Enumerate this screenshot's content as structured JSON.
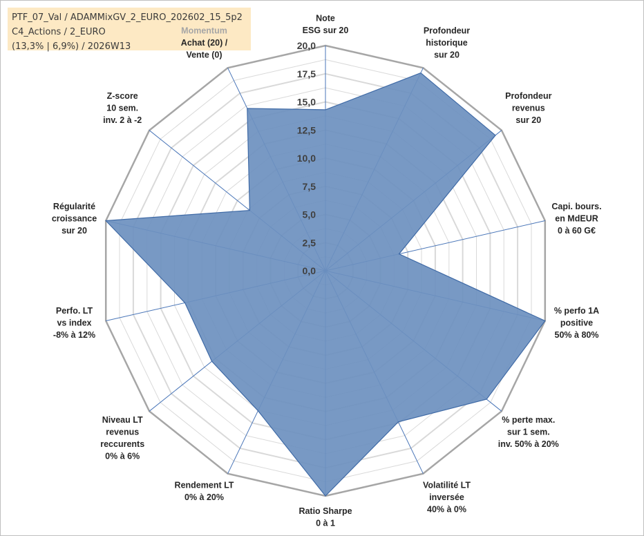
{
  "info": {
    "line1": "PTF_07_Val / ADAMMixGV_2_EURO_202602_15_5p2",
    "line2": "C4_Actions / 2_EURO",
    "line3": "(13,3% | 6,9%) / 2026W13"
  },
  "chart_data": {
    "type": "radar",
    "title": "",
    "rlim": [
      0,
      20
    ],
    "ticks": [
      "0,0",
      "2,5",
      "5,0",
      "7,5",
      "10,0",
      "12,5",
      "15,0",
      "17,5",
      "20,0"
    ],
    "grid": true,
    "series": [
      {
        "name": "PTF_07_Val",
        "color": "#5b7fb0",
        "values": [
          14.3,
          19.5,
          19.3,
          6.7,
          20.0,
          18.3,
          14.9,
          20.0,
          13.8,
          12.9,
          12.8,
          20.0,
          8.6,
          16.0
        ]
      }
    ],
    "axes": [
      {
        "lines": [
          "Note",
          "ESG sur 20"
        ]
      },
      {
        "lines": [
          "Profondeur",
          "historique",
          "sur 20"
        ]
      },
      {
        "lines": [
          "Profondeur",
          "revenus",
          "sur 20"
        ]
      },
      {
        "lines": [
          "Capi. bours.",
          "en MdEUR",
          "0 à 60 G€"
        ]
      },
      {
        "lines": [
          "% perfo 1A",
          "positive",
          "50% à 80%"
        ]
      },
      {
        "lines": [
          "% perte max.",
          "sur 1 sem.",
          "inv. 50% à 20%"
        ]
      },
      {
        "lines": [
          "Volatilité LT",
          "inversée",
          "40% à 0%"
        ]
      },
      {
        "lines": [
          "Ratio Sharpe",
          "0 à 1"
        ]
      },
      {
        "lines": [
          "Rendement LT",
          "0% à 20%"
        ]
      },
      {
        "lines": [
          "Niveau LT",
          "revenus",
          "reccurents",
          "0% à 6%"
        ]
      },
      {
        "lines": [
          "Perfo. LT",
          "vs index",
          "-8% à 12%"
        ]
      },
      {
        "lines": [
          "Régularité",
          "croissance",
          "sur 20"
        ]
      },
      {
        "lines": [
          "Z-score",
          "10 sem.",
          "inv. 2 à -2"
        ]
      },
      {
        "lines": [
          "Momentum",
          "Achat (20) /",
          "Vente (0)"
        ]
      }
    ]
  },
  "colors": {
    "fill": "#6d90bf",
    "stroke": "#3f6aa6",
    "grid": "#d9d9d9",
    "outer": "#a6a6a6",
    "spoke": "#4a76b8"
  }
}
